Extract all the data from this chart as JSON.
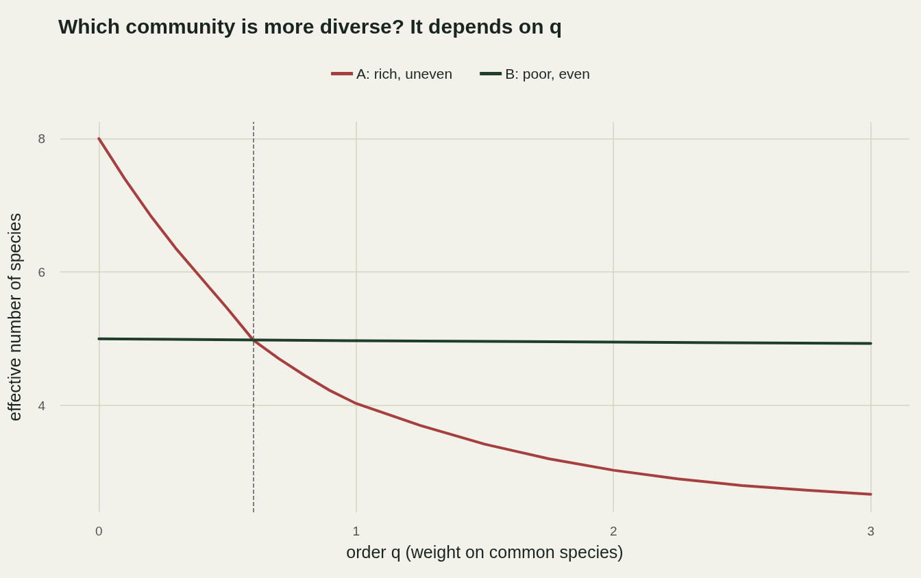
{
  "chart_data": {
    "type": "line",
    "title": "Which community is more diverse? It depends on q",
    "xlabel": "order q (weight on common species)",
    "ylabel": "effective number of species",
    "series": [
      {
        "name": "A: rich, uneven",
        "color": "#a63f3f",
        "x": [
          0,
          0.1,
          0.2,
          0.3,
          0.4,
          0.5,
          0.6,
          0.7,
          0.8,
          0.9,
          1.0,
          1.25,
          1.5,
          1.75,
          2.0,
          2.25,
          2.5,
          2.75,
          3.0
        ],
        "values": [
          8.0,
          7.4,
          6.85,
          6.35,
          5.9,
          5.45,
          4.98,
          4.7,
          4.45,
          4.22,
          4.03,
          3.7,
          3.42,
          3.2,
          3.03,
          2.9,
          2.8,
          2.73,
          2.67
        ]
      },
      {
        "name": "B: poor, even",
        "color": "#1f3d2b",
        "x": [
          0,
          1,
          2,
          3
        ],
        "values": [
          5.0,
          4.97,
          4.95,
          4.93
        ]
      }
    ],
    "xlim": [
      -0.15,
      3.15
    ],
    "xticks": [
      0,
      1,
      2,
      3
    ],
    "ylim": [
      2.4,
      8.25
    ],
    "yticks": [
      4,
      6,
      8
    ],
    "ref_lines": [
      {
        "axis": "x",
        "value": 0.6,
        "color": "#5a5a5a",
        "line_style": "dashed"
      }
    ],
    "grid": true,
    "legend": "top",
    "marker": "none",
    "line_style": "solid"
  }
}
